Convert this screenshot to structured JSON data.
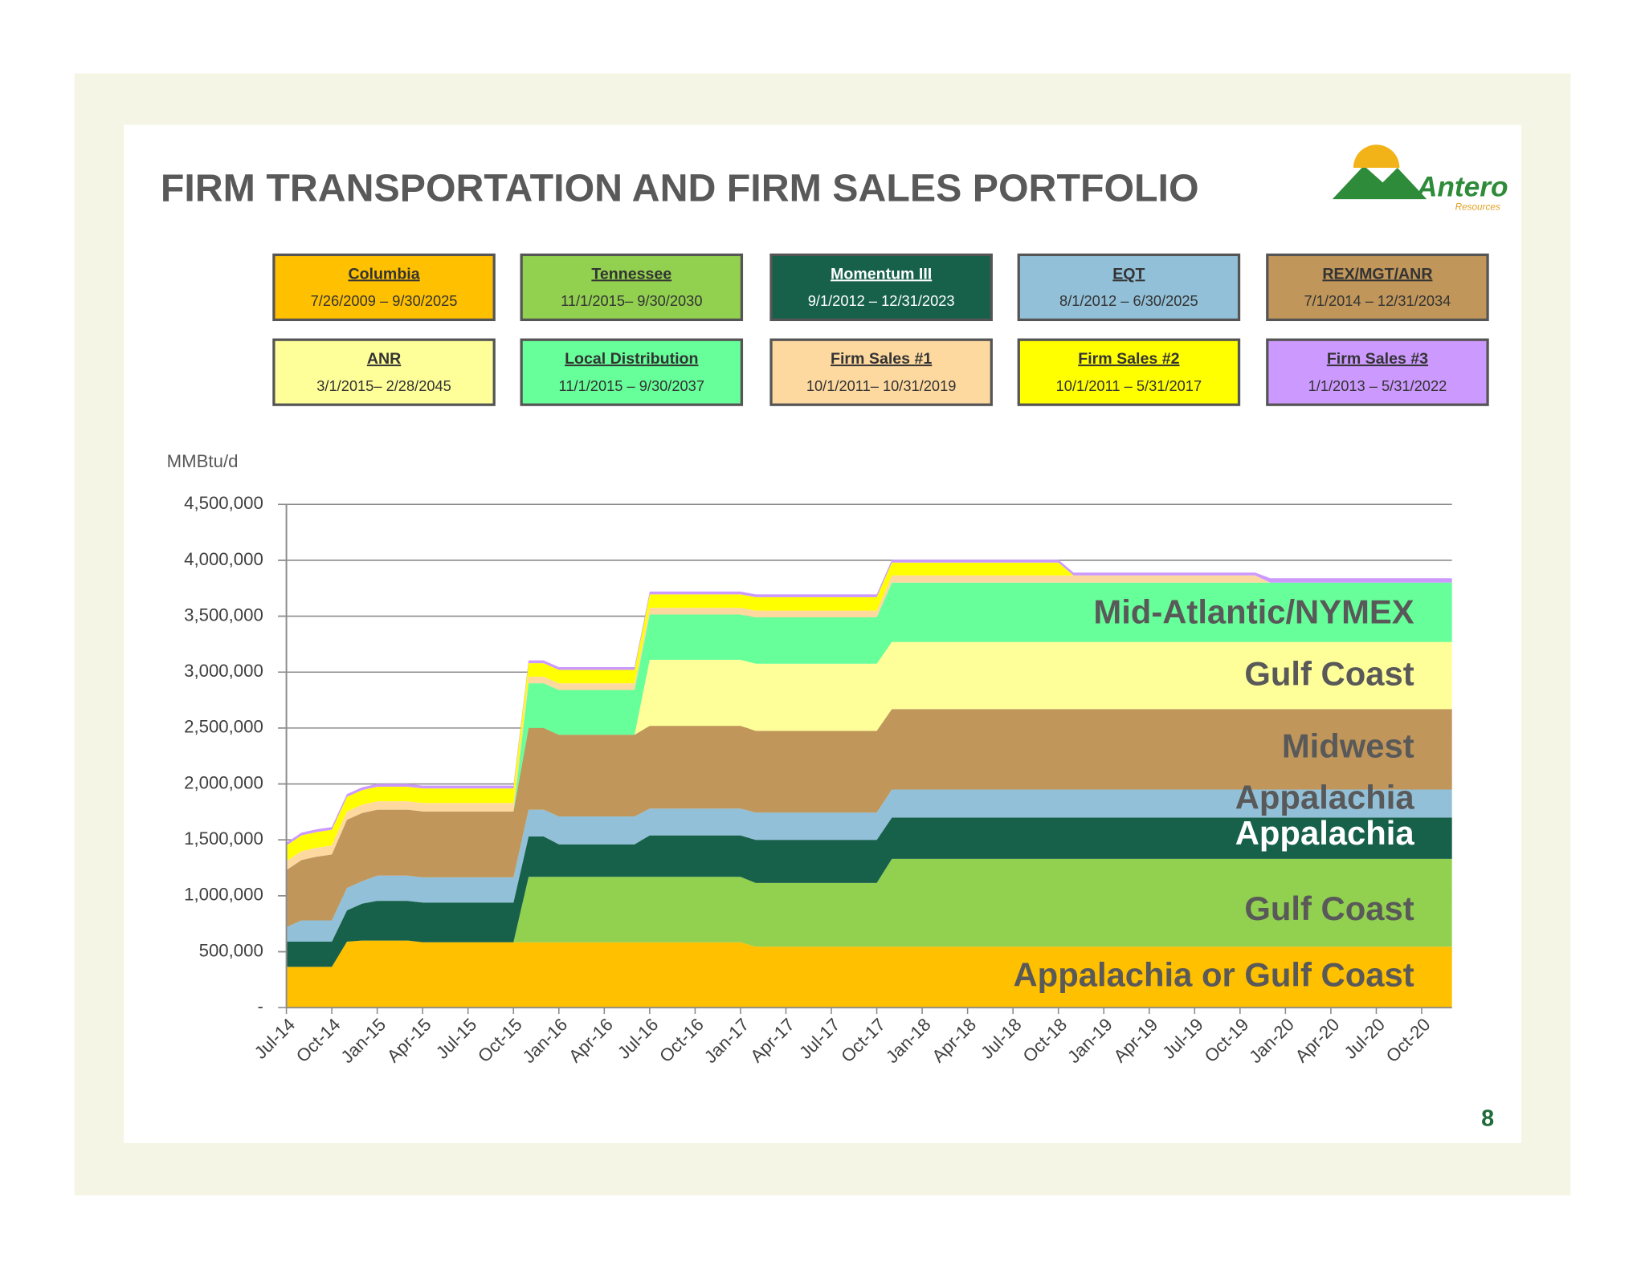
{
  "title": "FIRM TRANSPORTATION AND FIRM SALES PORTFOLIO",
  "logo": {
    "name": "Antero",
    "tagline": "Resources"
  },
  "page_number": "8",
  "chart_data": {
    "type": "stacked_area",
    "y_label": "MMBtu/d",
    "categories": [
      "Jul-14",
      null,
      null,
      "Oct-14",
      null,
      null,
      "Jan-15",
      null,
      null,
      "Apr-15",
      null,
      null,
      "Jul-15",
      null,
      null,
      "Oct-15",
      null,
      null,
      "Jan-16",
      null,
      null,
      "Apr-16",
      null,
      null,
      "Jul-16",
      null,
      null,
      "Oct-16",
      null,
      null,
      "Jan-17",
      null,
      null,
      "Apr-17",
      null,
      null,
      "Jul-17",
      null,
      null,
      "Oct-17",
      null,
      null,
      "Jan-18",
      null,
      null,
      "Apr-18",
      null,
      null,
      "Jul-18",
      null,
      null,
      "Oct-18",
      null,
      null,
      "Jan-19",
      null,
      null,
      "Apr-19",
      null,
      null,
      "Jul-19",
      null,
      null,
      "Oct-19",
      null,
      null,
      "Jan-20",
      null,
      null,
      "Apr-20",
      null,
      null,
      "Jul-20",
      null,
      null,
      "Oct-20",
      null,
      null
    ],
    "ylim": [
      0,
      4500000
    ],
    "yticks": [
      {
        "value": 0,
        "label": "-"
      },
      {
        "value": 500000,
        "label": "500,000"
      },
      {
        "value": 1000000,
        "label": "1,000,000"
      },
      {
        "value": 1500000,
        "label": "1,500,000"
      },
      {
        "value": 2000000,
        "label": "2,000,000"
      },
      {
        "value": 2500000,
        "label": "2,500,000"
      },
      {
        "value": 3000000,
        "label": "3,000,000"
      },
      {
        "value": 3500000,
        "label": "3,500,000"
      },
      {
        "value": 4000000,
        "label": "4,000,000"
      },
      {
        "value": 4500000,
        "label": "4,500,000"
      }
    ],
    "grid": true,
    "series": [
      {
        "name": "Columbia",
        "period": "7/26/2009 – 9/30/2025",
        "color": "#FFC000",
        "text_color": "#333333",
        "values": [
          365000,
          365000,
          365000,
          365000,
          590000,
          600000,
          600000,
          600000,
          600000,
          585000,
          585000,
          585000,
          585000,
          585000,
          585000,
          585000,
          585000,
          585000,
          585000,
          585000,
          585000,
          585000,
          585000,
          585000,
          585000,
          585000,
          585000,
          585000,
          585000,
          585000,
          585000,
          545000,
          545000,
          545000,
          545000,
          545000,
          545000,
          545000,
          545000,
          545000,
          545000,
          545000,
          545000,
          545000,
          545000,
          545000,
          545000,
          545000,
          545000,
          545000,
          545000,
          545000,
          545000,
          545000,
          545000,
          545000,
          545000,
          545000,
          545000,
          545000,
          545000,
          545000,
          545000,
          545000,
          545000,
          545000,
          545000,
          545000,
          545000,
          545000,
          545000,
          545000,
          545000,
          545000,
          545000,
          545000,
          545000,
          545000
        ]
      },
      {
        "name": "Tennessee",
        "period": "11/1/2015– 9/30/2030",
        "color": "#92D050",
        "text_color": "#333333",
        "values": [
          0,
          0,
          0,
          0,
          0,
          0,
          0,
          0,
          0,
          0,
          0,
          0,
          0,
          0,
          0,
          0,
          585000,
          585000,
          585000,
          585000,
          585000,
          585000,
          585000,
          585000,
          585000,
          585000,
          585000,
          585000,
          585000,
          585000,
          585000,
          570000,
          570000,
          570000,
          570000,
          570000,
          570000,
          570000,
          570000,
          570000,
          785000,
          785000,
          785000,
          785000,
          785000,
          785000,
          785000,
          785000,
          785000,
          785000,
          785000,
          785000,
          785000,
          785000,
          785000,
          785000,
          785000,
          785000,
          785000,
          785000,
          785000,
          785000,
          785000,
          785000,
          785000,
          785000,
          785000,
          785000,
          785000,
          785000,
          785000,
          785000,
          785000,
          785000,
          785000,
          785000,
          785000,
          785000
        ]
      },
      {
        "name": "Momentum III",
        "period": "9/1/2012 – 12/31/2023",
        "color": "#17614A",
        "text_color": "#ffffff",
        "values": [
          225000,
          225000,
          225000,
          225000,
          280000,
          330000,
          355000,
          355000,
          355000,
          355000,
          355000,
          355000,
          355000,
          355000,
          355000,
          355000,
          360000,
          360000,
          290000,
          290000,
          290000,
          290000,
          290000,
          290000,
          370000,
          370000,
          370000,
          370000,
          370000,
          370000,
          370000,
          385000,
          385000,
          385000,
          385000,
          385000,
          385000,
          385000,
          385000,
          385000,
          370000,
          370000,
          370000,
          370000,
          370000,
          370000,
          370000,
          370000,
          370000,
          370000,
          370000,
          370000,
          370000,
          370000,
          370000,
          370000,
          370000,
          370000,
          370000,
          370000,
          370000,
          370000,
          370000,
          370000,
          370000,
          370000,
          370000,
          370000,
          370000,
          370000,
          370000,
          370000,
          370000,
          370000,
          370000,
          370000,
          370000,
          370000
        ]
      },
      {
        "name": "EQT",
        "period": "8/1/2012 – 6/30/2025",
        "color": "#92C0D8",
        "text_color": "#333333",
        "values": [
          130000,
          190000,
          190000,
          190000,
          200000,
          200000,
          225000,
          225000,
          225000,
          225000,
          225000,
          225000,
          225000,
          225000,
          225000,
          225000,
          240000,
          240000,
          250000,
          250000,
          250000,
          250000,
          250000,
          250000,
          240000,
          240000,
          240000,
          240000,
          240000,
          240000,
          240000,
          245000,
          245000,
          245000,
          245000,
          245000,
          245000,
          245000,
          245000,
          245000,
          250000,
          250000,
          250000,
          250000,
          250000,
          250000,
          250000,
          250000,
          250000,
          250000,
          250000,
          250000,
          250000,
          250000,
          250000,
          250000,
          250000,
          250000,
          250000,
          250000,
          250000,
          250000,
          250000,
          250000,
          250000,
          250000,
          250000,
          250000,
          250000,
          250000,
          250000,
          250000,
          250000,
          250000,
          250000,
          250000,
          250000,
          250000
        ]
      },
      {
        "name": "REX/MGT/ANR",
        "period": "7/1/2014 – 12/31/2034",
        "color": "#C0965A",
        "text_color": "#333333",
        "values": [
          510000,
          540000,
          570000,
          590000,
          610000,
          610000,
          590000,
          590000,
          590000,
          590000,
          590000,
          590000,
          590000,
          590000,
          590000,
          590000,
          730000,
          730000,
          730000,
          730000,
          730000,
          730000,
          730000,
          730000,
          740000,
          740000,
          740000,
          740000,
          740000,
          740000,
          740000,
          730000,
          730000,
          730000,
          730000,
          730000,
          730000,
          730000,
          730000,
          730000,
          720000,
          720000,
          720000,
          720000,
          720000,
          720000,
          720000,
          720000,
          720000,
          720000,
          720000,
          720000,
          720000,
          720000,
          720000,
          720000,
          720000,
          720000,
          720000,
          720000,
          720000,
          720000,
          720000,
          720000,
          720000,
          720000,
          720000,
          720000,
          720000,
          720000,
          720000,
          720000,
          720000,
          720000,
          720000,
          720000,
          720000,
          720000
        ]
      },
      {
        "name": "ANR",
        "period": "3/1/2015– 2/28/2045",
        "color": "#FFFF99",
        "text_color": "#333333",
        "values": [
          0,
          0,
          0,
          0,
          0,
          0,
          0,
          0,
          0,
          0,
          0,
          0,
          0,
          0,
          0,
          0,
          0,
          0,
          0,
          0,
          0,
          0,
          0,
          0,
          590000,
          590000,
          590000,
          590000,
          590000,
          590000,
          590000,
          600000,
          600000,
          600000,
          600000,
          600000,
          600000,
          600000,
          600000,
          600000,
          600000,
          600000,
          600000,
          600000,
          600000,
          600000,
          600000,
          600000,
          600000,
          600000,
          600000,
          600000,
          600000,
          600000,
          600000,
          600000,
          600000,
          600000,
          600000,
          600000,
          600000,
          600000,
          600000,
          600000,
          600000,
          600000,
          600000,
          600000,
          600000,
          600000,
          600000,
          600000,
          600000,
          600000,
          600000,
          600000,
          600000,
          600000
        ]
      },
      {
        "name": "Local Distribution",
        "period": "11/1/2015 – 9/30/2037",
        "color": "#66FF99",
        "text_color": "#333333",
        "values": [
          0,
          0,
          0,
          0,
          0,
          0,
          0,
          0,
          0,
          0,
          0,
          0,
          0,
          0,
          0,
          0,
          400000,
          400000,
          400000,
          400000,
          400000,
          400000,
          400000,
          400000,
          405000,
          405000,
          405000,
          405000,
          405000,
          405000,
          405000,
          415000,
          415000,
          415000,
          415000,
          415000,
          415000,
          415000,
          415000,
          415000,
          530000,
          530000,
          530000,
          530000,
          530000,
          530000,
          530000,
          530000,
          530000,
          530000,
          530000,
          530000,
          530000,
          530000,
          530000,
          530000,
          530000,
          530000,
          530000,
          530000,
          530000,
          530000,
          530000,
          530000,
          530000,
          530000,
          530000,
          530000,
          530000,
          530000,
          530000,
          530000,
          530000,
          530000,
          530000,
          530000,
          530000,
          530000
        ]
      },
      {
        "name": "Firm Sales #1",
        "period": "10/1/2011– 10/31/2019",
        "color": "#FDD9A0",
        "text_color": "#333333",
        "values": [
          80000,
          80000,
          80000,
          80000,
          75000,
          75000,
          75000,
          75000,
          75000,
          75000,
          75000,
          75000,
          75000,
          75000,
          75000,
          75000,
          60000,
          60000,
          60000,
          60000,
          60000,
          60000,
          60000,
          60000,
          60000,
          60000,
          60000,
          60000,
          60000,
          60000,
          60000,
          60000,
          60000,
          60000,
          60000,
          60000,
          60000,
          60000,
          60000,
          60000,
          65000,
          65000,
          65000,
          65000,
          65000,
          65000,
          65000,
          65000,
          65000,
          65000,
          65000,
          65000,
          65000,
          65000,
          65000,
          65000,
          65000,
          65000,
          65000,
          65000,
          65000,
          65000,
          65000,
          65000,
          65000,
          0,
          0,
          0,
          0,
          0,
          0,
          0,
          0,
          0,
          0,
          0,
          0,
          0
        ]
      },
      {
        "name": "Firm Sales #2",
        "period": "10/1/2011 – 5/31/2017",
        "color": "#FFFF00",
        "text_color": "#333333",
        "values": [
          140000,
          140000,
          140000,
          140000,
          130000,
          130000,
          130000,
          130000,
          130000,
          130000,
          130000,
          130000,
          130000,
          130000,
          130000,
          130000,
          120000,
          120000,
          120000,
          120000,
          120000,
          120000,
          120000,
          120000,
          120000,
          120000,
          120000,
          120000,
          120000,
          120000,
          120000,
          120000,
          120000,
          120000,
          120000,
          120000,
          120000,
          120000,
          120000,
          120000,
          115000,
          115000,
          115000,
          115000,
          115000,
          115000,
          115000,
          115000,
          115000,
          115000,
          115000,
          115000,
          0,
          0,
          0,
          0,
          0,
          0,
          0,
          0,
          0,
          0,
          0,
          0,
          0,
          0,
          0,
          0,
          0,
          0,
          0,
          0,
          0,
          0,
          0,
          0,
          0,
          0
        ]
      },
      {
        "name": "Firm Sales #3",
        "period": "1/1/2013 – 5/31/2022",
        "color": "#CC99FF",
        "text_color": "#333333",
        "values": [
          25000,
          25000,
          25000,
          25000,
          25000,
          25000,
          25000,
          25000,
          25000,
          25000,
          25000,
          25000,
          25000,
          25000,
          25000,
          25000,
          25000,
          25000,
          25000,
          25000,
          25000,
          25000,
          25000,
          25000,
          25000,
          25000,
          25000,
          25000,
          25000,
          25000,
          25000,
          25000,
          25000,
          25000,
          25000,
          25000,
          25000,
          25000,
          25000,
          25000,
          25000,
          25000,
          25000,
          25000,
          25000,
          25000,
          25000,
          25000,
          25000,
          25000,
          25000,
          25000,
          25000,
          25000,
          25000,
          25000,
          25000,
          25000,
          25000,
          25000,
          25000,
          25000,
          25000,
          25000,
          25000,
          40000,
          40000,
          40000,
          40000,
          40000,
          40000,
          40000,
          40000,
          40000,
          40000,
          40000,
          40000,
          40000
        ]
      }
    ],
    "annotations": [
      {
        "text": "Mid-Atlantic/NYMEX",
        "color": "#595959"
      },
      {
        "text": "Gulf Coast",
        "color": "#595959"
      },
      {
        "text": "Midwest",
        "color": "#595959"
      },
      {
        "text": "Appalachia",
        "color": "#595959"
      },
      {
        "text": "Appalachia",
        "color": "#ffffff"
      },
      {
        "text": "Gulf Coast",
        "color": "#595959"
      },
      {
        "text": "Appalachia or Gulf Coast",
        "color": "#595959"
      }
    ]
  }
}
